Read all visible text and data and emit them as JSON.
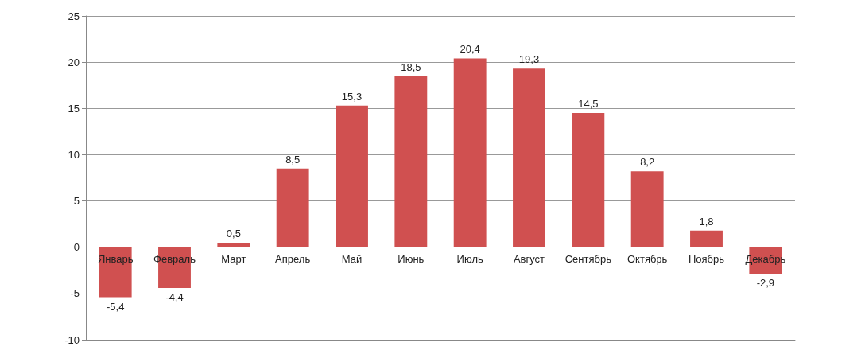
{
  "chart_data": {
    "type": "bar",
    "categories": [
      "Январь",
      "Февраль",
      "Март",
      "Апрель",
      "Май",
      "Июнь",
      "Июль",
      "Август",
      "Сентябрь",
      "Октябрь",
      "Ноябрь",
      "Декабрь"
    ],
    "values": [
      -5.4,
      -4.4,
      0.5,
      8.5,
      15.3,
      18.5,
      20.4,
      19.3,
      14.5,
      8.2,
      1.8,
      -2.9
    ],
    "value_labels": [
      "-5,4",
      "-4,4",
      "0,5",
      "8,5",
      "15,3",
      "18,5",
      "20,4",
      "19,3",
      "14,5",
      "8,2",
      "1,8",
      "-2,9"
    ],
    "color": "#d05050",
    "ylim": [
      -10,
      25
    ],
    "yticks": [
      -10,
      -5,
      0,
      5,
      10,
      15,
      20,
      25
    ],
    "grid": "y"
  }
}
